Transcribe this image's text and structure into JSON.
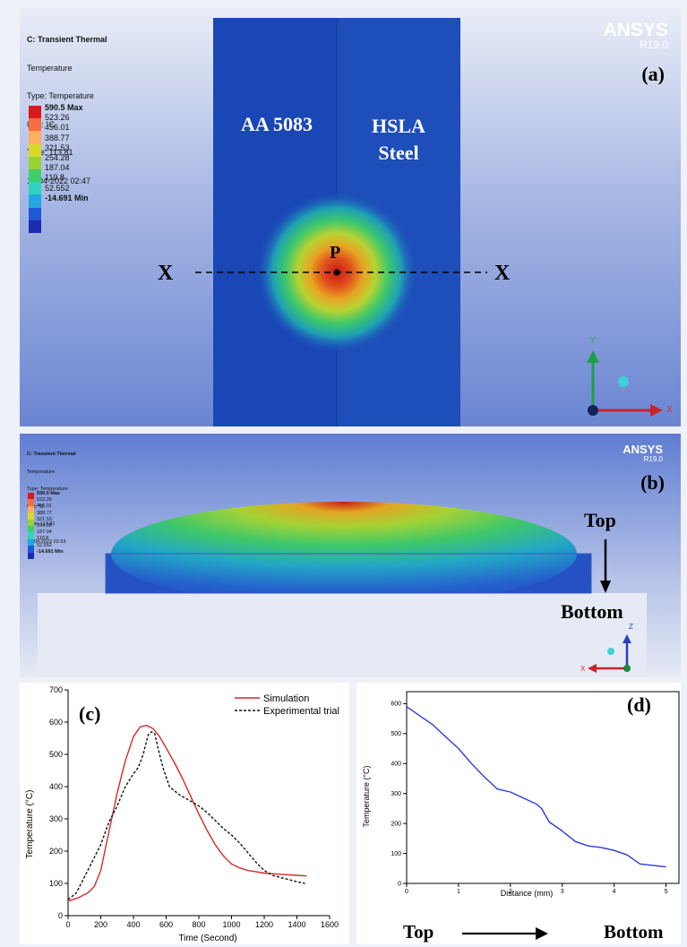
{
  "panel_a": {
    "legend_lines": [
      "C: Transient Thermal",
      "Temperature",
      "Type: Temperature",
      "Unit: °C",
      "Time: 113.81",
      "19-04-2022 02:47"
    ],
    "colorbar_labels": [
      "590.5 Max",
      "523.26",
      "456.01",
      "388.77",
      "321.53",
      "254.28",
      "187.04",
      "119.8",
      "52.552",
      "-14.691 Min"
    ],
    "ansys_name": "ANSYS",
    "ansys_version": "R19.0",
    "panel_tag": "(a)",
    "material_left": "AA 5083",
    "material_right_1": "HSLA",
    "material_right_2": "Steel",
    "point_label": "P",
    "line_label_left": "X",
    "line_label_right": "X",
    "axis_y_label": "Y",
    "axis_x_label": "X"
  },
  "panel_b": {
    "legend_lines": [
      "C: Transient Thermal",
      "Temperature",
      "Type: Temperature",
      "Unit: °C",
      "Time: 113.81",
      "19-04-2022 02:33"
    ],
    "colorbar_labels": [
      "590.5 Max",
      "523.26",
      "456.01",
      "388.77",
      "321.53",
      "254.28",
      "187.04",
      "119.8",
      "52.552",
      "-14.691 Min"
    ],
    "ansys_name": "ANSYS",
    "ansys_version": "R19.0",
    "panel_tag": "(b)",
    "top_label": "Top",
    "bottom_label": "Bottom",
    "axis_z_label": "Z",
    "axis_x_label": "X"
  },
  "colors": {
    "colorbar": [
      "#d7191c",
      "#f46d43",
      "#fdae61",
      "#d9d92a",
      "#9bd132",
      "#3fcf6a",
      "#2fd3c1",
      "#22a7e0",
      "#1f58d6",
      "#1a2cb0"
    ],
    "simulation_line": "#d42a2a",
    "experimental_line": "#111111",
    "distance_line": "#2b3bd6"
  },
  "chart_c": {
    "panel_tag": "(c)",
    "xlabel": "Time (Second)",
    "ylabel": "Temperature  (°C)",
    "legend": [
      "Simulation",
      "Experimental trial"
    ]
  },
  "chart_d": {
    "panel_tag": "(d)",
    "xlabel": "Distance (mm)",
    "ylabel": "Temperature (°C)",
    "caption_left": "Top",
    "caption_right": "Bottom"
  },
  "chart_data": [
    {
      "type": "line",
      "xlabel": "Time (Second)",
      "ylabel": "Temperature  (°C)",
      "xlim": [
        0,
        1600
      ],
      "ylim": [
        0,
        700
      ],
      "xticks": [
        0,
        200,
        400,
        600,
        800,
        1000,
        1200,
        1400,
        1600
      ],
      "yticks": [
        0,
        100,
        200,
        300,
        400,
        500,
        600,
        700
      ],
      "legend_position": "top-right",
      "series": [
        {
          "name": "Simulation",
          "style": "solid",
          "x": [
            0,
            60,
            120,
            160,
            200,
            250,
            300,
            350,
            400,
            440,
            480,
            520,
            560,
            600,
            650,
            700,
            750,
            800,
            850,
            900,
            950,
            1000,
            1050,
            1100,
            1200,
            1300,
            1400,
            1460
          ],
          "y": [
            45,
            55,
            70,
            90,
            140,
            260,
            380,
            480,
            555,
            585,
            590,
            580,
            555,
            520,
            475,
            425,
            370,
            315,
            265,
            220,
            185,
            160,
            148,
            140,
            132,
            128,
            125,
            123
          ]
        },
        {
          "name": "Experimental trial",
          "style": "dashed",
          "x": [
            0,
            50,
            100,
            150,
            200,
            250,
            300,
            350,
            400,
            430,
            460,
            490,
            510,
            530,
            550,
            580,
            620,
            680,
            750,
            800,
            850,
            900,
            950,
            1000,
            1050,
            1100,
            1150,
            1200,
            1250,
            1300,
            1350,
            1400,
            1450
          ],
          "y": [
            50,
            70,
            120,
            170,
            220,
            290,
            340,
            400,
            440,
            460,
            500,
            560,
            570,
            565,
            520,
            460,
            400,
            375,
            355,
            340,
            320,
            295,
            270,
            250,
            225,
            195,
            165,
            140,
            125,
            118,
            112,
            105,
            100
          ]
        }
      ]
    },
    {
      "type": "line",
      "xlabel": "Distance (mm)",
      "ylabel": "Temperature (°C)",
      "xlim": [
        0,
        5.25
      ],
      "ylim": [
        0,
        640
      ],
      "xticks": [
        0,
        1,
        2,
        3,
        4,
        5
      ],
      "yticks": [
        0,
        100,
        200,
        300,
        400,
        500,
        600
      ],
      "series": [
        {
          "x": [
            0,
            0.25,
            0.5,
            0.75,
            1.0,
            1.25,
            1.5,
            1.75,
            2.0,
            2.25,
            2.5,
            2.6,
            2.75,
            3.0,
            3.25,
            3.5,
            3.75,
            4.0,
            4.25,
            4.5,
            4.75,
            5.0
          ],
          "y": [
            590,
            560,
            530,
            490,
            450,
            400,
            355,
            315,
            305,
            285,
            265,
            250,
            205,
            175,
            140,
            125,
            120,
            110,
            95,
            65,
            60,
            55
          ]
        }
      ]
    }
  ]
}
